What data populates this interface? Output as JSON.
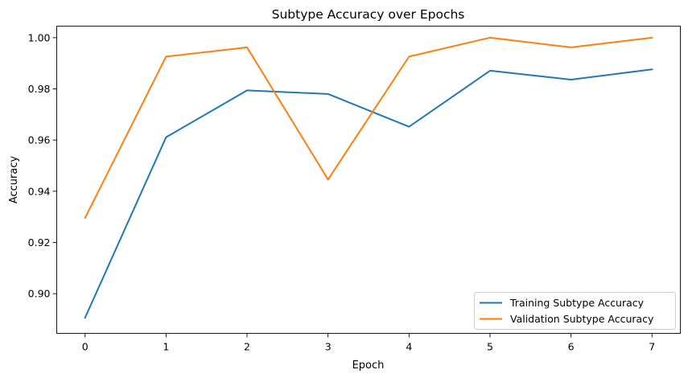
{
  "chart_data": {
    "type": "line",
    "title": "Subtype Accuracy over Epochs",
    "xlabel": "Epoch",
    "ylabel": "Accuracy",
    "x": [
      0,
      1,
      2,
      3,
      4,
      5,
      6,
      7
    ],
    "xticks": [
      "0",
      "1",
      "2",
      "3",
      "4",
      "5",
      "6",
      "7"
    ],
    "xlim": [
      -0.35,
      7.35
    ],
    "ylim": [
      0.8845,
      1.0045
    ],
    "yticks": [
      0.9,
      0.92,
      0.94,
      0.96,
      0.98,
      1.0
    ],
    "ytick_labels": [
      "0.90",
      "0.92",
      "0.94",
      "0.96",
      "0.98",
      "1.00"
    ],
    "grid": false,
    "legend_position": "lower-right",
    "series": [
      {
        "name": "Training Subtype Accuracy",
        "color": "#1f77b4",
        "values": [
          0.8906,
          0.9611,
          0.9794,
          0.978,
          0.9652,
          0.9871,
          0.9836,
          0.9876
        ]
      },
      {
        "name": "Validation Subtype Accuracy",
        "color": "#ff7f0e",
        "values": [
          0.9296,
          0.9926,
          0.9962,
          0.9446,
          0.9926,
          1.0,
          0.9962,
          1.0
        ]
      }
    ]
  }
}
